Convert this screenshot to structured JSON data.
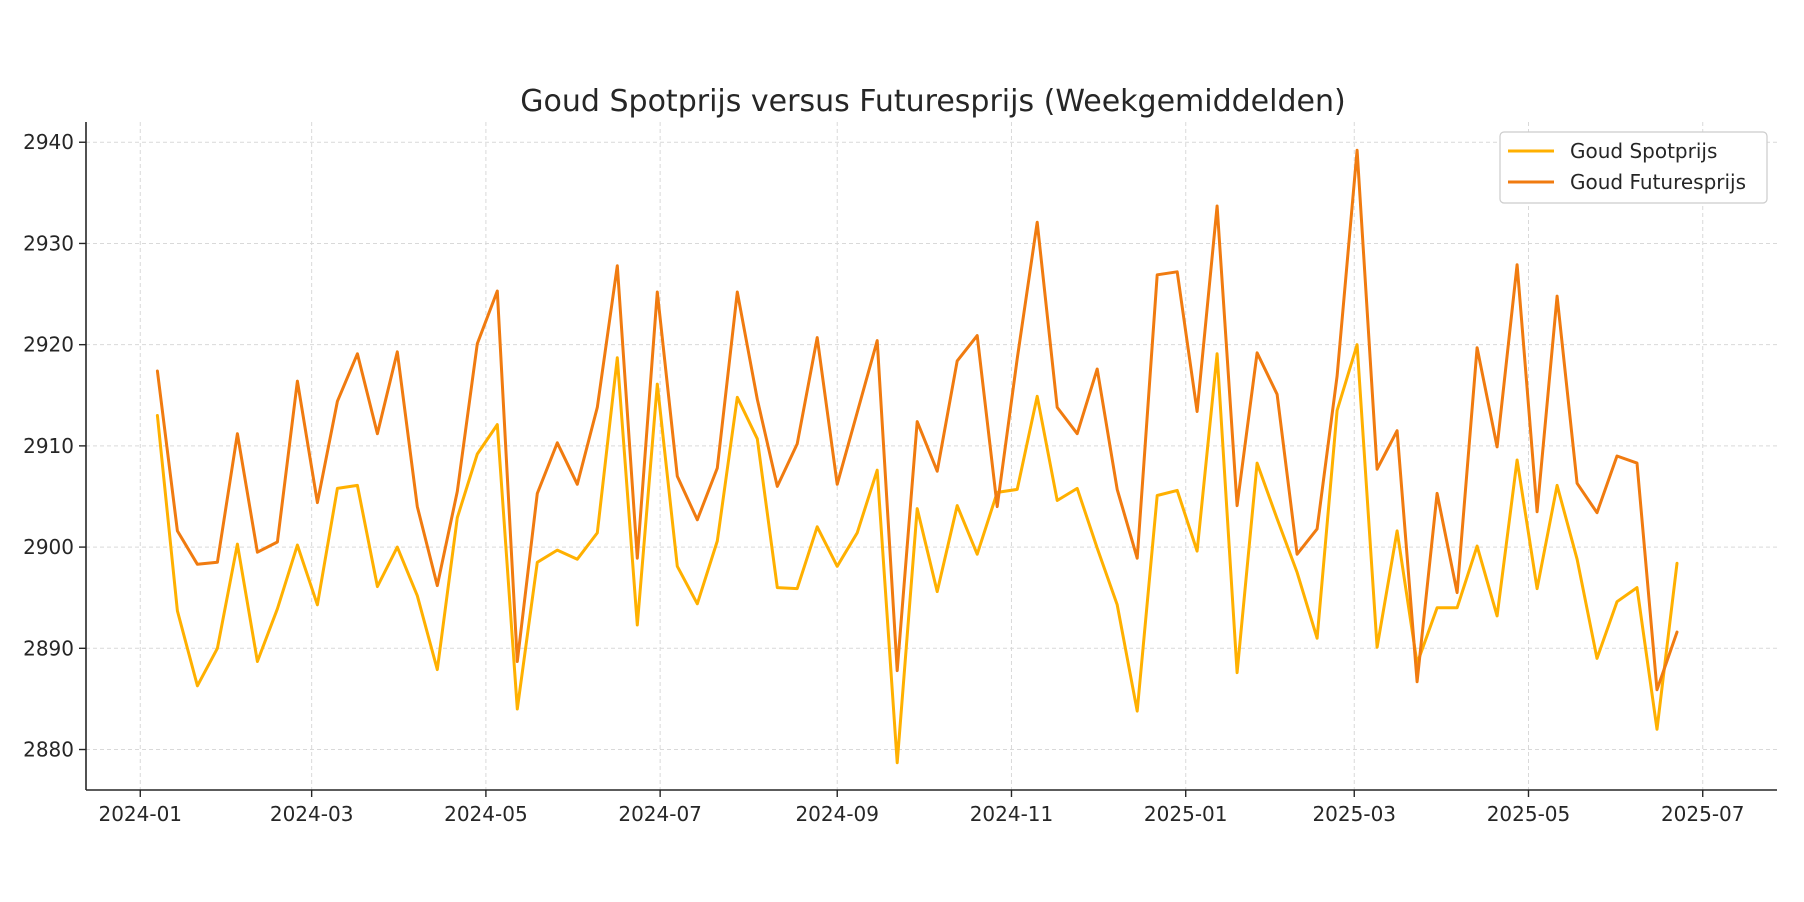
{
  "chart_data": {
    "type": "line",
    "title": "Goud Spotprijs versus Futuresprijs (Weekgemiddelden)",
    "xlabel": "",
    "ylabel": "",
    "ylim": [
      2876,
      2942
    ],
    "xlim": [
      "2023-12-13",
      "2025-07-27"
    ],
    "grid": true,
    "legend_position": "top-right",
    "x_ticks": [
      "2024-01",
      "2024-03",
      "2024-05",
      "2024-07",
      "2024-09",
      "2024-11",
      "2025-01",
      "2025-03",
      "2025-05",
      "2025-07"
    ],
    "y_ticks": [
      2880,
      2890,
      2900,
      2910,
      2920,
      2930,
      2940
    ],
    "x": [
      "2024-01-07",
      "2024-01-14",
      "2024-01-21",
      "2024-01-28",
      "2024-02-04",
      "2024-02-11",
      "2024-02-18",
      "2024-02-25",
      "2024-03-03",
      "2024-03-10",
      "2024-03-17",
      "2024-03-24",
      "2024-03-31",
      "2024-04-07",
      "2024-04-14",
      "2024-04-21",
      "2024-04-28",
      "2024-05-05",
      "2024-05-12",
      "2024-05-19",
      "2024-05-26",
      "2024-06-02",
      "2024-06-09",
      "2024-06-16",
      "2024-06-23",
      "2024-06-30",
      "2024-07-07",
      "2024-07-14",
      "2024-07-21",
      "2024-07-28",
      "2024-08-04",
      "2024-08-11",
      "2024-08-18",
      "2024-08-25",
      "2024-09-01",
      "2024-09-08",
      "2024-09-15",
      "2024-09-22",
      "2024-09-29",
      "2024-10-06",
      "2024-10-13",
      "2024-10-20",
      "2024-10-27",
      "2024-11-03",
      "2024-11-10",
      "2024-11-17",
      "2024-11-24",
      "2024-12-01",
      "2024-12-08",
      "2024-12-15",
      "2024-12-22",
      "2024-12-29",
      "2025-01-05",
      "2025-01-12",
      "2025-01-19",
      "2025-01-26",
      "2025-02-02",
      "2025-02-09",
      "2025-02-16",
      "2025-02-23",
      "2025-03-02",
      "2025-03-09",
      "2025-03-16",
      "2025-03-23",
      "2025-03-30",
      "2025-04-06",
      "2025-04-13",
      "2025-04-20",
      "2025-04-27",
      "2025-05-04",
      "2025-05-11",
      "2025-05-18",
      "2025-05-25",
      "2025-06-01",
      "2025-06-08",
      "2025-06-15",
      "2025-06-22"
    ],
    "series": [
      {
        "name": "Goud Spotprijs",
        "color": "#FFB000",
        "values": [
          2913.0,
          2893.7,
          2886.3,
          2890.0,
          2900.3,
          2888.7,
          2893.9,
          2900.2,
          2894.3,
          2905.8,
          2906.1,
          2896.1,
          2900.0,
          2895.2,
          2887.9,
          2902.9,
          2909.2,
          2912.1,
          2884.0,
          2898.5,
          2899.7,
          2898.8,
          2901.4,
          2918.7,
          2892.3,
          2916.1,
          2898.1,
          2894.4,
          2900.6,
          2914.8,
          2910.7,
          2896.0,
          2895.9,
          2902.0,
          2898.1,
          2901.4,
          2907.6,
          2878.7,
          2903.8,
          2895.6,
          2904.1,
          2899.3,
          2905.4,
          2905.7,
          2914.9,
          2904.6,
          2905.8,
          2899.9,
          2894.3,
          2883.8,
          2905.1,
          2905.6,
          2899.6,
          2919.1,
          2887.6,
          2908.3,
          2902.8,
          2897.5,
          2891.0,
          2913.5,
          2920.0,
          2890.1,
          2901.6,
          2888.5,
          2894.0,
          2894.0,
          2900.1,
          2893.2,
          2908.6,
          2895.9,
          2906.1,
          2898.8,
          2889.0,
          2894.6,
          2896.0,
          2882.0,
          2898.4
        ]
      },
      {
        "name": "Goud Futuresprijs",
        "color": "#F07B10",
        "values": [
          2917.4,
          2901.6,
          2898.3,
          2898.5,
          2911.2,
          2899.5,
          2900.5,
          2916.4,
          2904.4,
          2914.4,
          2919.1,
          2911.2,
          2919.3,
          2904.0,
          2896.2,
          2905.5,
          2920.1,
          2925.3,
          2888.7,
          2905.3,
          2910.3,
          2906.2,
          2913.8,
          2927.8,
          2898.9,
          2925.2,
          2907.0,
          2902.7,
          2907.8,
          2925.2,
          2914.6,
          2906.0,
          2910.2,
          2920.7,
          2906.2,
          2913.3,
          2920.4,
          2887.8,
          2912.4,
          2907.5,
          2918.4,
          2920.9,
          2904.0,
          2918.6,
          2932.1,
          2913.8,
          2911.2,
          2917.6,
          2905.7,
          2898.9,
          2926.9,
          2927.2,
          2913.4,
          2933.7,
          2904.1,
          2919.2,
          2915.1,
          2899.3,
          2901.8,
          2916.9,
          2939.2,
          2907.7,
          2911.5,
          2886.7,
          2905.3,
          2895.5,
          2919.7,
          2909.9,
          2927.9,
          2903.5,
          2924.8,
          2906.3,
          2903.4,
          2909.0,
          2908.3,
          2885.9,
          2891.6
        ]
      }
    ]
  }
}
